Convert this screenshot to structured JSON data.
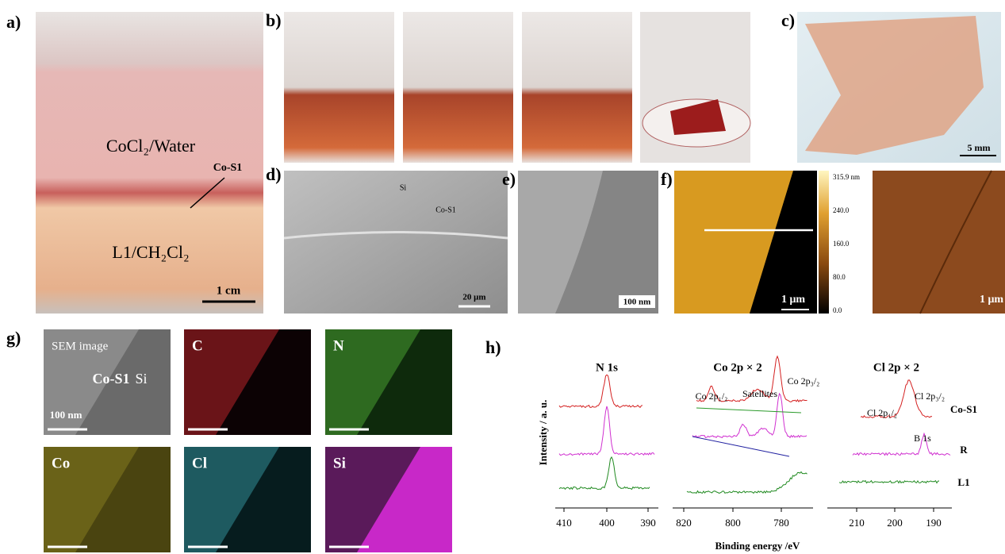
{
  "panels": {
    "a": {
      "label": "a)",
      "solution_top": "CoCl₂/Water",
      "film": "Co-S1",
      "solution_bottom": "L1/CH₂Cl₂",
      "scale": "1 cm"
    },
    "b": {
      "label": "b)"
    },
    "c": {
      "label": "c)",
      "scale": "5 mm"
    },
    "d": {
      "label": "d)",
      "region_1": "Si",
      "region_2": "Co-S1",
      "scale": "20 μm"
    },
    "e": {
      "label": "e)",
      "scale": "100 nm"
    },
    "f": {
      "label": "f)",
      "colorbar": [
        "315.9 nm",
        "240.0",
        "160.0",
        "80.0",
        "0.0"
      ],
      "scale_left": "1 μm",
      "scale_right": "1 μm"
    },
    "g": {
      "label": "g)",
      "tiles": [
        "SEM image",
        "C",
        "N",
        "Co",
        "Cl",
        "Si"
      ],
      "sem_film": "Co-S1",
      "sem_substrate": "Si",
      "scale": "100 nm"
    },
    "h": {
      "label": "h)",
      "y_label": "Intensity / a. u.",
      "x_label": "Binding energy /eV",
      "subplots": [
        {
          "title": "N 1s",
          "ticks": [
            "410",
            "400",
            "390"
          ]
        },
        {
          "title": "Co 2p   × 2",
          "ticks": [
            "820",
            "800",
            "780"
          ],
          "annotations": [
            "Co 2p₁/₂",
            "Satellites",
            "Co 2p₃/₂"
          ]
        },
        {
          "title": "Cl 2p    × 2",
          "ticks": [
            "210",
            "200",
            "190"
          ],
          "annotations": [
            "Cl 2p₁/₂",
            "Cl 2p₃/₂",
            "B 1s"
          ]
        }
      ],
      "samples": [
        "Co-S1",
        "R",
        "L1"
      ]
    }
  }
}
